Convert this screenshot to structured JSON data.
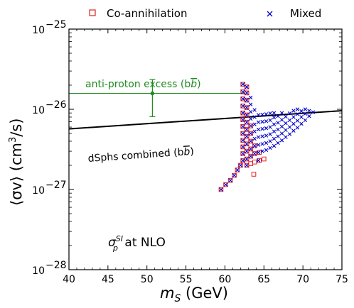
{
  "chart_data": {
    "type": "scatter",
    "x_axis": {
      "label_var": "m",
      "label_sub": "S",
      "label_unit": " (GeV)",
      "range": [
        40,
        75
      ],
      "ticks": [
        40,
        45,
        50,
        55,
        60,
        65,
        70,
        75
      ]
    },
    "y_axis": {
      "label": "⟨σv⟩ (cm³/s)",
      "label_pre": "⟨σv⟩ (cm",
      "label_sup": "3",
      "label_post": "/s)",
      "scale": "log",
      "range": [
        1e-28,
        1e-25
      ],
      "ticks": [
        {
          "value": 1e-28,
          "base": "10",
          "exp": "−28"
        },
        {
          "value": 1e-27,
          "base": "10",
          "exp": "−27"
        },
        {
          "value": 1e-26,
          "base": "10",
          "exp": "−26"
        },
        {
          "value": 1e-25,
          "base": "10",
          "exp": "−25"
        }
      ]
    },
    "legend": {
      "placement": "top",
      "entries": [
        {
          "label": "Co-annihilation",
          "marker": "square",
          "color": "#dd2222"
        },
        {
          "label": "Mixed",
          "marker": "x",
          "color": "#0000cc"
        }
      ]
    },
    "dsphs_line": {
      "label": "dSphs combined (b",
      "label_bar": "b",
      "label_end": ")",
      "color": "#000000",
      "x": [
        40,
        75
      ],
      "y": [
        5.7e-27,
        9.6e-27
      ]
    },
    "antiproton_excess": {
      "label": "anti-proton excess (b",
      "label_bar": "b",
      "label_end": ")",
      "color": "#228b22",
      "center": {
        "x": 50.7,
        "y": 1.58e-26
      },
      "y_err": [
        8.1e-27,
        2.35e-26
      ],
      "hline": {
        "x": [
          40,
          62.5
        ],
        "y": 1.58e-26
      }
    },
    "annotation": {
      "sym": "σ",
      "sub": "p",
      "sup": "SI",
      "rest": " at NLO"
    },
    "series": [
      {
        "name": "Co-annihilation",
        "marker": "square",
        "color": "#dd2222",
        "points": [
          [
            59.5,
            1e-27
          ],
          [
            60.1,
            1.15e-27
          ],
          [
            60.7,
            1.3e-27
          ],
          [
            61.2,
            1.5e-27
          ],
          [
            61.6,
            1.75e-27
          ],
          [
            62.0,
            2e-27
          ],
          [
            62.3,
            2.3e-27
          ],
          [
            62.3,
            2.8e-27
          ],
          [
            62.3,
            3.4e-27
          ],
          [
            62.3,
            4.1e-27
          ],
          [
            62.3,
            5e-27
          ],
          [
            62.3,
            6.1e-27
          ],
          [
            62.3,
            7.4e-27
          ],
          [
            62.3,
            9e-27
          ],
          [
            62.3,
            1.1e-26
          ],
          [
            62.3,
            1.35e-26
          ],
          [
            62.3,
            1.65e-26
          ],
          [
            62.3,
            2.05e-26
          ],
          [
            62.8,
            2e-27
          ],
          [
            62.8,
            2.4e-27
          ],
          [
            62.8,
            3e-27
          ],
          [
            62.8,
            3.7e-27
          ],
          [
            62.8,
            4.6e-27
          ],
          [
            62.8,
            5.6e-27
          ],
          [
            62.8,
            6.9e-27
          ],
          [
            62.8,
            8.5e-27
          ],
          [
            62.8,
            1.05e-26
          ],
          [
            62.8,
            1.3e-26
          ],
          [
            62.8,
            1.6e-26
          ],
          [
            62.8,
            1.9e-26
          ],
          [
            63.3,
            2.1e-27
          ],
          [
            63.3,
            2.6e-27
          ],
          [
            63.3,
            3.2e-27
          ],
          [
            63.3,
            4e-27
          ],
          [
            63.3,
            5e-27
          ],
          [
            63.3,
            6.2e-27
          ],
          [
            63.7,
            1.55e-27
          ],
          [
            63.8,
            2.2e-27
          ],
          [
            63.8,
            2.8e-27
          ],
          [
            63.8,
            3.5e-27
          ],
          [
            64.4,
            2.3e-27
          ],
          [
            64.4,
            2.9e-27
          ],
          [
            65.0,
            2.4e-27
          ]
        ]
      },
      {
        "name": "Mixed",
        "marker": "x",
        "color": "#0000cc",
        "points": [
          [
            59.5,
            1e-27
          ],
          [
            60.1,
            1.15e-27
          ],
          [
            60.7,
            1.3e-27
          ],
          [
            61.2,
            1.5e-27
          ],
          [
            61.6,
            1.75e-27
          ],
          [
            62.0,
            2e-27
          ],
          [
            62.3,
            2.3e-27
          ],
          [
            62.3,
            2.8e-27
          ],
          [
            62.3,
            3.4e-27
          ],
          [
            62.3,
            4.1e-27
          ],
          [
            62.3,
            5e-27
          ],
          [
            62.3,
            6.1e-27
          ],
          [
            62.3,
            7.4e-27
          ],
          [
            62.3,
            9e-27
          ],
          [
            62.3,
            1.1e-26
          ],
          [
            62.3,
            1.35e-26
          ],
          [
            62.3,
            1.65e-26
          ],
          [
            62.3,
            2.05e-26
          ],
          [
            62.8,
            2e-27
          ],
          [
            62.8,
            2.4e-27
          ],
          [
            62.8,
            3e-27
          ],
          [
            62.8,
            3.7e-27
          ],
          [
            62.8,
            4.6e-27
          ],
          [
            62.8,
            5.6e-27
          ],
          [
            62.8,
            6.9e-27
          ],
          [
            62.8,
            8.5e-27
          ],
          [
            62.8,
            1.05e-26
          ],
          [
            62.8,
            1.3e-26
          ],
          [
            62.8,
            1.6e-26
          ],
          [
            62.8,
            1.9e-26
          ],
          [
            63.3,
            2.6e-27
          ],
          [
            63.3,
            3.2e-27
          ],
          [
            63.3,
            4e-27
          ],
          [
            63.3,
            5e-27
          ],
          [
            63.3,
            6.2e-27
          ],
          [
            63.3,
            7.6e-27
          ],
          [
            63.3,
            9.3e-27
          ],
          [
            63.3,
            1.15e-26
          ],
          [
            63.3,
            1.4e-26
          ],
          [
            63.8,
            2.8e-27
          ],
          [
            63.8,
            3.5e-27
          ],
          [
            63.8,
            4.3e-27
          ],
          [
            63.8,
            5.3e-27
          ],
          [
            63.8,
            6.5e-27
          ],
          [
            63.8,
            8e-27
          ],
          [
            63.8,
            9.8e-27
          ],
          [
            64.3,
            2.3e-27
          ],
          [
            64.3,
            2.9e-27
          ],
          [
            64.3,
            3.6e-27
          ],
          [
            64.3,
            4.5e-27
          ],
          [
            64.3,
            5.6e-27
          ],
          [
            64.3,
            6.9e-27
          ],
          [
            64.3,
            8.5e-27
          ],
          [
            64.8,
            3e-27
          ],
          [
            64.8,
            3.7e-27
          ],
          [
            64.8,
            4.6e-27
          ],
          [
            64.8,
            5.7e-27
          ],
          [
            64.8,
            7e-27
          ],
          [
            64.8,
            8.6e-27
          ],
          [
            65.3,
            3.1e-27
          ],
          [
            65.3,
            3.8e-27
          ],
          [
            65.3,
            4.7e-27
          ],
          [
            65.3,
            5.8e-27
          ],
          [
            65.3,
            7.1e-27
          ],
          [
            65.3,
            8.7e-27
          ],
          [
            65.8,
            3.3e-27
          ],
          [
            65.8,
            4e-27
          ],
          [
            65.8,
            4.9e-27
          ],
          [
            65.8,
            6e-27
          ],
          [
            65.8,
            7.3e-27
          ],
          [
            65.8,
            8.9e-27
          ],
          [
            66.3,
            3.5e-27
          ],
          [
            66.3,
            4.3e-27
          ],
          [
            66.3,
            5.3e-27
          ],
          [
            66.3,
            6.5e-27
          ],
          [
            66.3,
            7.9e-27
          ],
          [
            66.3,
            9e-27
          ],
          [
            66.8,
            3.8e-27
          ],
          [
            66.8,
            4.6e-27
          ],
          [
            66.8,
            5.6e-27
          ],
          [
            66.8,
            6.8e-27
          ],
          [
            66.8,
            8.2e-27
          ],
          [
            67.3,
            4.1e-27
          ],
          [
            67.3,
            5e-27
          ],
          [
            67.3,
            6.1e-27
          ],
          [
            67.3,
            7.4e-27
          ],
          [
            67.3,
            9e-27
          ],
          [
            67.8,
            4.5e-27
          ],
          [
            67.8,
            5.5e-27
          ],
          [
            67.8,
            6.7e-27
          ],
          [
            67.8,
            8.1e-27
          ],
          [
            68.3,
            4.9e-27
          ],
          [
            68.3,
            6e-27
          ],
          [
            68.3,
            7.3e-27
          ],
          [
            68.3,
            8.9e-27
          ],
          [
            68.8,
            5.4e-27
          ],
          [
            68.8,
            6.6e-27
          ],
          [
            68.8,
            8e-27
          ],
          [
            68.8,
            9.6e-27
          ],
          [
            69.3,
            5.9e-27
          ],
          [
            69.3,
            7.2e-27
          ],
          [
            69.3,
            8.7e-27
          ],
          [
            69.3,
            1e-26
          ],
          [
            69.8,
            6.6e-27
          ],
          [
            69.8,
            8e-27
          ],
          [
            69.8,
            9.5e-27
          ],
          [
            70.3,
            7.3e-27
          ],
          [
            70.3,
            8.8e-27
          ],
          [
            70.3,
            1e-26
          ],
          [
            70.8,
            8.2e-27
          ],
          [
            70.8,
            9.6e-27
          ],
          [
            71.3,
            9.2e-27
          ]
        ]
      }
    ]
  }
}
